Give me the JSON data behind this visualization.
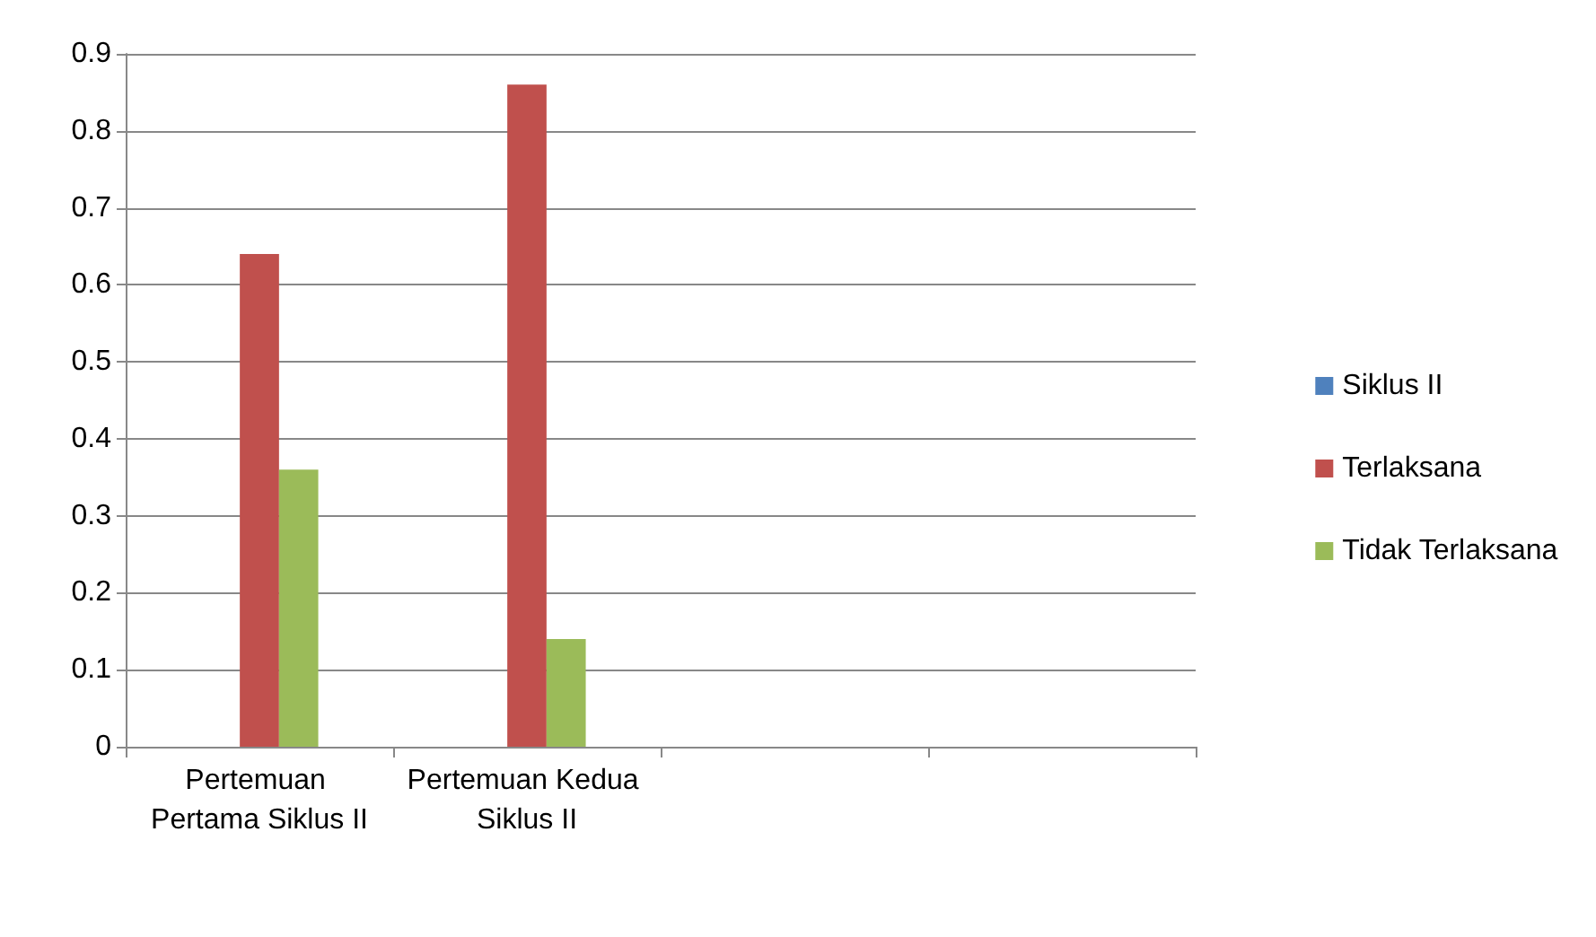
{
  "chart_data": {
    "type": "bar",
    "categories": [
      "Pertemuan Pertama Siklus II",
      "Pertemuan Kedua Siklus II",
      null,
      null
    ],
    "series": [
      {
        "name": "Siklus II",
        "color": "#4f81bd",
        "values": [
          null,
          null,
          null,
          null
        ]
      },
      {
        "name": "Terlaksana",
        "color": "#c0504d",
        "values": [
          0.64,
          0.86,
          null,
          null
        ]
      },
      {
        "name": "Tidak Terlaksana",
        "color": "#9bbb59",
        "values": [
          0.36,
          0.14,
          null,
          null
        ]
      }
    ],
    "ylim": [
      0,
      0.9
    ],
    "yticks": [
      0,
      0.1,
      0.2,
      0.3,
      0.4,
      0.5,
      0.6,
      0.7,
      0.8,
      0.9
    ],
    "grid": "y",
    "legend": "right"
  }
}
